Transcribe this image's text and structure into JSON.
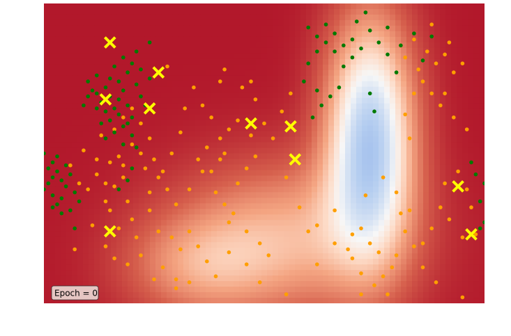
{
  "chart_data": {
    "type": "scatter",
    "title": "",
    "xlabel": "",
    "ylabel": "",
    "xlim": [
      0,
      1
    ],
    "ylim": [
      0,
      1
    ],
    "grid": false,
    "legend": "none",
    "annotation": "Epoch = 0",
    "background": {
      "type": "heatmap",
      "colormap": "RdBu",
      "description_colors": {
        "high": "#b2182b",
        "mid": "#f7f7f7",
        "low": "#2c3fbf"
      },
      "blobs": [
        {
          "cx": 0.74,
          "cy": 0.55,
          "sx": 0.07,
          "sy": 0.28,
          "strength": 1.0
        },
        {
          "cx": 0.55,
          "cy": 0.22,
          "sx": 0.18,
          "sy": 0.18,
          "strength": 0.45
        },
        {
          "cx": 0.35,
          "cy": 0.12,
          "sx": 0.12,
          "sy": 0.12,
          "strength": 0.3
        }
      ]
    },
    "series": [
      {
        "color": "#ff9f00",
        "marker": "circle",
        "points": [
          [
            0.09,
            0.51
          ],
          [
            0.12,
            0.43
          ],
          [
            0.14,
            0.4
          ],
          [
            0.15,
            0.47
          ],
          [
            0.13,
            0.56
          ],
          [
            0.16,
            0.58
          ],
          [
            0.17,
            0.49
          ],
          [
            0.18,
            0.42
          ],
          [
            0.19,
            0.34
          ],
          [
            0.2,
            0.28
          ],
          [
            0.21,
            0.22
          ],
          [
            0.17,
            0.25
          ],
          [
            0.15,
            0.31
          ],
          [
            0.14,
            0.19
          ],
          [
            0.16,
            0.15
          ],
          [
            0.19,
            0.13
          ],
          [
            0.22,
            0.16
          ],
          [
            0.24,
            0.37
          ],
          [
            0.23,
            0.45
          ],
          [
            0.22,
            0.5
          ],
          [
            0.24,
            0.55
          ],
          [
            0.25,
            0.48
          ],
          [
            0.27,
            0.44
          ],
          [
            0.28,
            0.38
          ],
          [
            0.24,
            0.31
          ],
          [
            0.26,
            0.24
          ],
          [
            0.3,
            0.33
          ],
          [
            0.33,
            0.38
          ],
          [
            0.36,
            0.44
          ],
          [
            0.39,
            0.37
          ],
          [
            0.41,
            0.33
          ],
          [
            0.44,
            0.4
          ],
          [
            0.46,
            0.45
          ],
          [
            0.48,
            0.49
          ],
          [
            0.47,
            0.56
          ],
          [
            0.44,
            0.61
          ],
          [
            0.42,
            0.58
          ],
          [
            0.4,
            0.55
          ],
          [
            0.38,
            0.62
          ],
          [
            0.36,
            0.66
          ],
          [
            0.34,
            0.72
          ],
          [
            0.32,
            0.65
          ],
          [
            0.37,
            0.52
          ],
          [
            0.4,
            0.48
          ],
          [
            0.43,
            0.3
          ],
          [
            0.46,
            0.24
          ],
          [
            0.49,
            0.2
          ],
          [
            0.51,
            0.16
          ],
          [
            0.46,
            0.13
          ],
          [
            0.42,
            0.17
          ],
          [
            0.39,
            0.09
          ],
          [
            0.37,
            0.14
          ],
          [
            0.35,
            0.19
          ],
          [
            0.33,
            0.24
          ],
          [
            0.31,
            0.18
          ],
          [
            0.29,
            0.22
          ],
          [
            0.27,
            0.12
          ],
          [
            0.3,
            0.08
          ],
          [
            0.33,
            0.07
          ],
          [
            0.56,
            0.7
          ],
          [
            0.54,
            0.64
          ],
          [
            0.52,
            0.55
          ],
          [
            0.5,
            0.6
          ],
          [
            0.48,
            0.68
          ],
          [
            0.45,
            0.72
          ],
          [
            0.41,
            0.78
          ],
          [
            0.4,
            0.74
          ],
          [
            0.55,
            0.42
          ],
          [
            0.58,
            0.32
          ],
          [
            0.62,
            0.26
          ],
          [
            0.66,
            0.31
          ],
          [
            0.72,
            0.25
          ],
          [
            0.76,
            0.17
          ],
          [
            0.79,
            0.12
          ],
          [
            0.75,
            0.06
          ],
          [
            0.72,
            0.1
          ],
          [
            0.7,
            0.15
          ],
          [
            0.73,
            0.36
          ],
          [
            0.77,
            0.42
          ],
          [
            0.8,
            0.37
          ],
          [
            0.81,
            0.3
          ],
          [
            0.82,
            0.24
          ],
          [
            0.84,
            0.19
          ],
          [
            0.86,
            0.12
          ],
          [
            0.89,
            0.07
          ],
          [
            0.88,
            0.25
          ],
          [
            0.9,
            0.32
          ],
          [
            0.91,
            0.4
          ],
          [
            0.94,
            0.44
          ],
          [
            0.96,
            0.38
          ],
          [
            0.92,
            0.28
          ],
          [
            0.95,
            0.22
          ],
          [
            0.83,
            0.55
          ],
          [
            0.82,
            0.63
          ],
          [
            0.84,
            0.7
          ],
          [
            0.86,
            0.74
          ],
          [
            0.88,
            0.7
          ],
          [
            0.9,
            0.66
          ],
          [
            0.85,
            0.78
          ],
          [
            0.82,
            0.82
          ],
          [
            0.81,
            0.86
          ],
          [
            0.84,
            0.88
          ],
          [
            0.87,
            0.84
          ],
          [
            0.89,
            0.8
          ],
          [
            0.91,
            0.83
          ],
          [
            0.93,
            0.77
          ],
          [
            0.95,
            0.8
          ],
          [
            0.88,
            0.93
          ],
          [
            0.92,
            0.87
          ],
          [
            0.77,
            0.09
          ],
          [
            0.78,
            0.03
          ],
          [
            0.72,
            0.03
          ],
          [
            0.66,
            0.2
          ],
          [
            0.62,
            0.13
          ],
          [
            0.55,
            0.03
          ],
          [
            0.49,
            0.07
          ],
          [
            0.42,
            0.27
          ],
          [
            0.3,
            0.05
          ],
          [
            0.25,
            0.08
          ],
          [
            0.6,
            0.24
          ],
          [
            0.69,
            0.18
          ],
          [
            0.7,
            0.23
          ],
          [
            0.74,
            0.2
          ],
          [
            0.8,
            0.16
          ],
          [
            0.83,
            0.31
          ],
          [
            0.86,
            0.2
          ],
          [
            0.96,
            0.58
          ],
          [
            0.91,
            0.7
          ],
          [
            0.93,
            0.62
          ],
          [
            0.97,
            0.32
          ],
          [
            0.98,
            0.23
          ],
          [
            0.95,
            0.02
          ],
          [
            0.07,
            0.18
          ],
          [
            0.11,
            0.26
          ],
          [
            0.14,
            0.34
          ],
          [
            0.16,
            0.39
          ],
          [
            0.18,
            0.46
          ],
          [
            0.2,
            0.53
          ],
          [
            0.22,
            0.6
          ],
          [
            0.26,
            0.42
          ],
          [
            0.29,
            0.5
          ],
          [
            0.31,
            0.57
          ],
          [
            0.35,
            0.48
          ],
          [
            0.38,
            0.44
          ],
          [
            0.41,
            0.5
          ],
          [
            0.18,
            0.62
          ],
          [
            0.2,
            0.65
          ],
          [
            0.1,
            0.38
          ],
          [
            0.12,
            0.48
          ],
          [
            0.08,
            0.4
          ],
          [
            0.06,
            0.46
          ],
          [
            0.28,
            0.79
          ],
          [
            0.47,
            0.74
          ]
        ]
      },
      {
        "color": "#007a00",
        "marker": "circle",
        "points": [
          [
            0.0,
            0.38
          ],
          [
            0.01,
            0.4
          ],
          [
            0.02,
            0.42
          ],
          [
            0.03,
            0.44
          ],
          [
            0.04,
            0.41
          ],
          [
            0.05,
            0.39
          ],
          [
            0.02,
            0.36
          ],
          [
            0.03,
            0.33
          ],
          [
            0.04,
            0.35
          ],
          [
            0.01,
            0.45
          ],
          [
            0.02,
            0.47
          ],
          [
            0.03,
            0.49
          ],
          [
            0.05,
            0.46
          ],
          [
            0.06,
            0.43
          ],
          [
            0.07,
            0.37
          ],
          [
            0.08,
            0.34
          ],
          [
            0.06,
            0.31
          ],
          [
            0.04,
            0.3
          ],
          [
            0.02,
            0.32
          ],
          [
            0.0,
            0.5
          ],
          [
            0.07,
            0.25
          ],
          [
            0.12,
            0.7
          ],
          [
            0.13,
            0.67
          ],
          [
            0.14,
            0.64
          ],
          [
            0.15,
            0.61
          ],
          [
            0.16,
            0.65
          ],
          [
            0.17,
            0.68
          ],
          [
            0.18,
            0.71
          ],
          [
            0.19,
            0.66
          ],
          [
            0.2,
            0.62
          ],
          [
            0.18,
            0.59
          ],
          [
            0.16,
            0.57
          ],
          [
            0.14,
            0.72
          ],
          [
            0.15,
            0.75
          ],
          [
            0.17,
            0.74
          ],
          [
            0.19,
            0.77
          ],
          [
            0.21,
            0.73
          ],
          [
            0.22,
            0.69
          ],
          [
            0.2,
            0.56
          ],
          [
            0.18,
            0.53
          ],
          [
            0.13,
            0.6
          ],
          [
            0.12,
            0.65
          ],
          [
            0.11,
            0.71
          ],
          [
            0.1,
            0.74
          ],
          [
            0.16,
            0.79
          ],
          [
            0.18,
            0.82
          ],
          [
            0.2,
            0.8
          ],
          [
            0.22,
            0.78
          ],
          [
            0.24,
            0.75
          ],
          [
            0.21,
            0.84
          ],
          [
            0.24,
            0.87
          ],
          [
            0.15,
            0.69
          ],
          [
            0.17,
            0.63
          ],
          [
            0.19,
            0.6
          ],
          [
            0.14,
            0.55
          ],
          [
            0.09,
            0.66
          ],
          [
            0.23,
            0.66
          ],
          [
            0.21,
            0.52
          ],
          [
            0.12,
            0.76
          ],
          [
            0.1,
            0.69
          ],
          [
            0.2,
            0.45
          ],
          [
            0.19,
            0.41
          ],
          [
            0.17,
            0.38
          ],
          [
            0.6,
            0.92
          ],
          [
            0.62,
            0.89
          ],
          [
            0.64,
            0.87
          ],
          [
            0.66,
            0.9
          ],
          [
            0.68,
            0.86
          ],
          [
            0.7,
            0.88
          ],
          [
            0.72,
            0.85
          ],
          [
            0.74,
            0.91
          ],
          [
            0.76,
            0.87
          ],
          [
            0.78,
            0.83
          ],
          [
            0.7,
            0.82
          ],
          [
            0.68,
            0.79
          ],
          [
            0.66,
            0.84
          ],
          [
            0.64,
            0.93
          ],
          [
            0.62,
            0.84
          ],
          [
            0.6,
            0.8
          ],
          [
            0.62,
            0.71
          ],
          [
            0.63,
            0.66
          ],
          [
            0.65,
            0.69
          ],
          [
            0.67,
            0.72
          ],
          [
            0.74,
            0.7
          ],
          [
            0.75,
            0.64
          ],
          [
            0.8,
            0.77
          ],
          [
            0.81,
            0.86
          ],
          [
            0.84,
            0.9
          ],
          [
            0.86,
            0.81
          ],
          [
            0.88,
            0.89
          ],
          [
            0.73,
            0.97
          ],
          [
            0.59,
            0.74
          ],
          [
            0.61,
            0.62
          ],
          [
            0.78,
            0.92
          ],
          [
            0.71,
            0.94
          ],
          [
            1.0,
            0.4
          ],
          [
            0.99,
            0.34
          ],
          [
            0.98,
            0.43
          ],
          [
            0.97,
            0.47
          ],
          [
            1.0,
            0.27
          ],
          [
            0.99,
            0.25
          ]
        ]
      },
      {
        "color": "#ffff00",
        "marker": "x",
        "points": [
          [
            0.15,
            0.87
          ],
          [
            0.26,
            0.77
          ],
          [
            0.14,
            0.68
          ],
          [
            0.24,
            0.65
          ],
          [
            0.47,
            0.6
          ],
          [
            0.56,
            0.59
          ],
          [
            0.57,
            0.48
          ],
          [
            0.15,
            0.24
          ],
          [
            0.94,
            0.39
          ],
          [
            0.97,
            0.23
          ]
        ]
      }
    ]
  }
}
